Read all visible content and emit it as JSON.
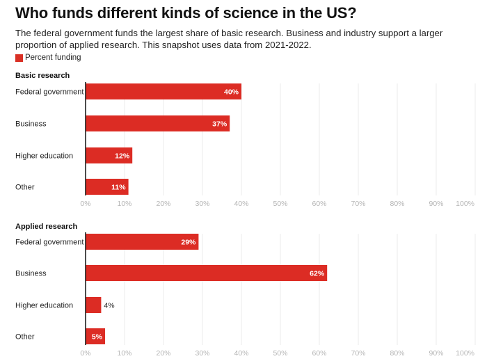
{
  "header": {
    "title": "Who funds different kinds of science in the US?",
    "subtitle": "The federal government funds the largest share of basic research. Business and industry support a larger proportion of applied research. This snapshot uses data from 2021-2022."
  },
  "legend": {
    "label": "Percent funding",
    "color": "#d93025"
  },
  "colors": {
    "bar": "#dc2c24",
    "gridline": "#ebebeb",
    "axis": "#111111",
    "tick_text": "#b5b5b5"
  },
  "chart_data": [
    {
      "type": "bar",
      "orientation": "horizontal",
      "title": "Basic research",
      "categories": [
        "Federal government",
        "Business",
        "Higher education",
        "Other"
      ],
      "series": [
        {
          "name": "Percent funding",
          "values": [
            40,
            37,
            12,
            11
          ]
        }
      ],
      "value_labels": [
        "40%",
        "37%",
        "12%",
        "11%"
      ],
      "xlim": [
        0,
        100
      ],
      "xticks": [
        "0%",
        "10%",
        "20%",
        "30%",
        "40%",
        "50%",
        "60%",
        "70%",
        "80%",
        "90%",
        "100%"
      ],
      "grid": true,
      "legend": "top-left"
    },
    {
      "type": "bar",
      "orientation": "horizontal",
      "title": "Applied research",
      "categories": [
        "Federal government",
        "Business",
        "Higher education",
        "Other"
      ],
      "series": [
        {
          "name": "Percent funding",
          "values": [
            29,
            62,
            4,
            5
          ]
        }
      ],
      "value_labels": [
        "29%",
        "62%",
        "4%",
        "5%"
      ],
      "xlim": [
        0,
        100
      ],
      "xticks": [
        "0%",
        "10%",
        "20%",
        "30%",
        "40%",
        "50%",
        "60%",
        "70%",
        "80%",
        "90%",
        "100%"
      ],
      "grid": true,
      "legend": "top-left"
    }
  ]
}
